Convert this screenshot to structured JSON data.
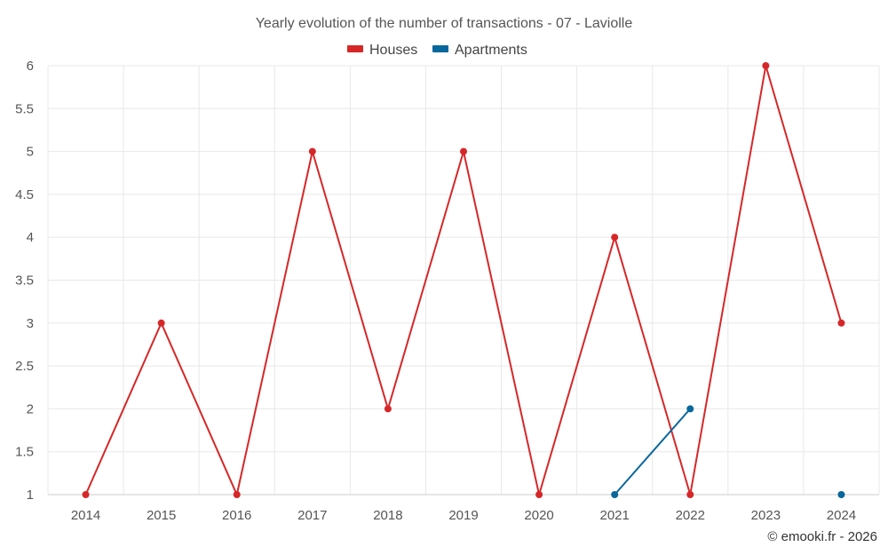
{
  "chart_data": {
    "type": "line",
    "title": "Yearly evolution of the number of transactions - 07 - Laviolle",
    "xlabel": "",
    "ylabel": "",
    "categories": [
      "2014",
      "2015",
      "2016",
      "2017",
      "2018",
      "2019",
      "2020",
      "2021",
      "2022",
      "2023",
      "2024"
    ],
    "ylim": [
      1,
      6
    ],
    "yticks": [
      "1",
      "1.5",
      "2",
      "2.5",
      "3",
      "3.5",
      "4",
      "4.5",
      "5",
      "5.5",
      "6"
    ],
    "legend_position": "top-center",
    "grid": true,
    "series": [
      {
        "name": "Houses",
        "color": "#d62728",
        "values": [
          1,
          3,
          1,
          5,
          2,
          5,
          1,
          4,
          1,
          6,
          3
        ]
      },
      {
        "name": "Apartments",
        "color": "#08679c",
        "values": [
          null,
          null,
          null,
          null,
          null,
          null,
          null,
          1,
          2,
          null,
          1
        ]
      }
    ]
  },
  "credit": "© emooki.fr - 2026"
}
